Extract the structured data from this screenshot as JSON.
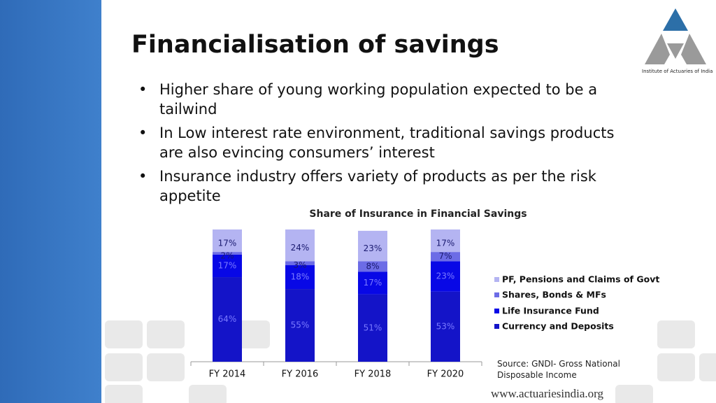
{
  "title": "Financialisation of savings",
  "bullets": [
    "Higher share of young working population expected to be a tailwind",
    "In Low interest rate environment, traditional savings products are also evincing consumers’ interest",
    "Insurance industry offers variety of products as per the risk appetite"
  ],
  "logo_text": "Institute of Actuaries of India",
  "source": "Source: GNDI- Gross National Disposable Income",
  "website": "www.actuariesindia.org",
  "chart_data": {
    "type": "stacked_bar",
    "title": "Share of Insurance in Financial Savings",
    "categories": [
      "FY 2014",
      "FY 2016",
      "FY 2018",
      "FY 2020"
    ],
    "series": [
      {
        "name": "Currency and Deposits",
        "color": "#1414c8",
        "values": [
          64,
          55,
          51,
          53
        ],
        "value_labels": [
          "64%",
          "55%",
          "51%",
          "53%"
        ]
      },
      {
        "name": "Life Insurance Fund",
        "color": "#0808e6",
        "values": [
          17,
          18,
          17,
          23
        ],
        "value_labels": [
          "17%",
          "18%",
          "17%",
          "23%"
        ]
      },
      {
        "name": "Shares, Bonds & MFs",
        "color": "#6c6ce6",
        "values": [
          2,
          3,
          8,
          7
        ],
        "value_labels": [
          "2%",
          "3%",
          "8%",
          "7%"
        ]
      },
      {
        "name": "PF, Pensions and Claims of Govt",
        "color": "#b4b4f2",
        "values": [
          17,
          24,
          23,
          17
        ],
        "value_labels": [
          "17%",
          "24%",
          "23%",
          "17%"
        ]
      }
    ]
  }
}
